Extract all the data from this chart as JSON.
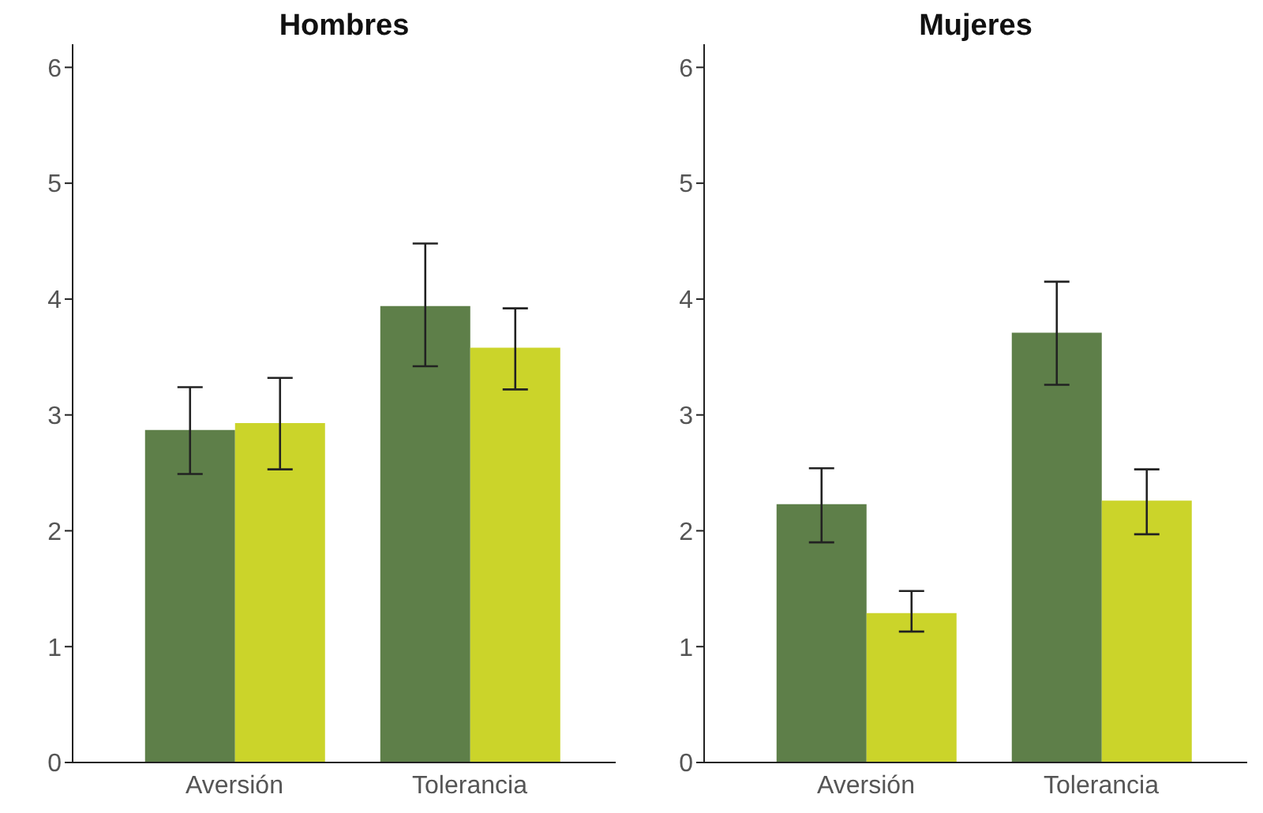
{
  "chart_data": [
    {
      "type": "bar",
      "title": "Hombres",
      "categories": [
        "Aversión",
        "Tolerancia"
      ],
      "ylim": [
        0,
        6.2
      ],
      "yticks": [
        0,
        1,
        2,
        3,
        4,
        5,
        6
      ],
      "grid": false,
      "legend": false,
      "series": [
        {
          "color": "#5e7f49",
          "values": [
            2.87,
            3.94
          ],
          "errors": [
            [
              2.49,
              3.24
            ],
            [
              3.42,
              4.48
            ]
          ]
        },
        {
          "color": "#cbd42a",
          "values": [
            2.93,
            3.58
          ],
          "errors": [
            [
              2.53,
              3.32
            ],
            [
              3.22,
              3.92
            ]
          ]
        }
      ]
    },
    {
      "type": "bar",
      "title": "Mujeres",
      "categories": [
        "Aversión",
        "Tolerancia"
      ],
      "ylim": [
        0,
        6.2
      ],
      "yticks": [
        0,
        1,
        2,
        3,
        4,
        5,
        6
      ],
      "grid": false,
      "legend": false,
      "series": [
        {
          "color": "#5e7f49",
          "values": [
            2.23,
            3.71
          ],
          "errors": [
            [
              1.9,
              2.54
            ],
            [
              3.26,
              4.15
            ]
          ]
        },
        {
          "color": "#cbd42a",
          "values": [
            1.29,
            2.26
          ],
          "errors": [
            [
              1.13,
              1.48
            ],
            [
              1.97,
              2.53
            ]
          ]
        }
      ]
    }
  ]
}
